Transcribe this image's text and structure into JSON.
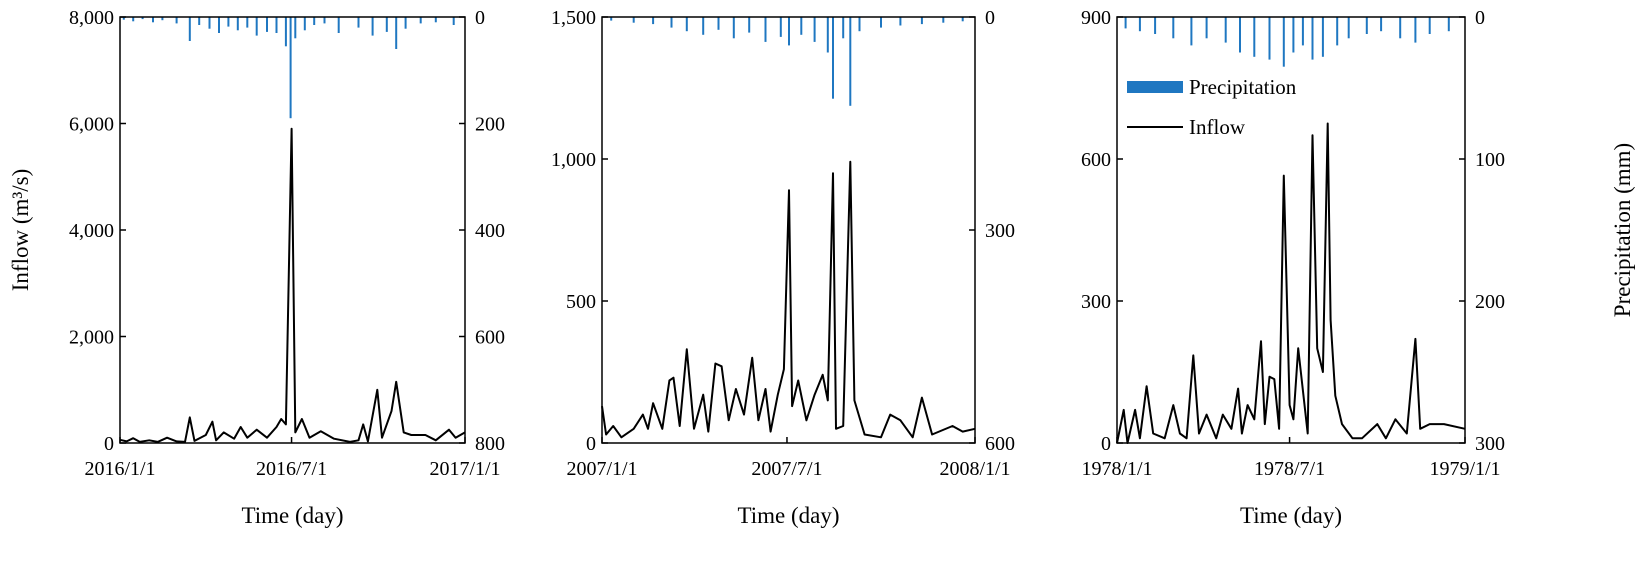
{
  "chart_data": [
    {
      "type": "line",
      "xlabel": "Time (day)",
      "ylabel": "Inflow (m³/s)",
      "y2label": "",
      "x_ticks": [
        "2016/1/1",
        "2016/7/1",
        "2017/1/1"
      ],
      "x_range": [
        "2016/1/1",
        "2017/1/1"
      ],
      "ylim": [
        0,
        8000
      ],
      "y_ticks": [
        "0",
        "2,000",
        "4,000",
        "6,000",
        "8,000"
      ],
      "y2lim": [
        0,
        800
      ],
      "y2_inverted": true,
      "y2_ticks": [
        "0",
        "200",
        "400",
        "600",
        "800"
      ],
      "legend": null,
      "series": [
        {
          "name": "Inflow",
          "chart": "line",
          "color": "#000000",
          "points": [
            [
              "2016/1/1",
              60
            ],
            [
              "2016/1/8",
              30
            ],
            [
              "2016/1/15",
              90
            ],
            [
              "2016/1/22",
              20
            ],
            [
              "2016/2/1",
              50
            ],
            [
              "2016/2/10",
              20
            ],
            [
              "2016/2/20",
              100
            ],
            [
              "2016/3/1",
              30
            ],
            [
              "2016/3/10",
              20
            ],
            [
              "2016/3/15",
              480
            ],
            [
              "2016/3/20",
              40
            ],
            [
              "2016/4/1",
              150
            ],
            [
              "2016/4/8",
              400
            ],
            [
              "2016/4/12",
              50
            ],
            [
              "2016/4/20",
              200
            ],
            [
              "2016/5/1",
              80
            ],
            [
              "2016/5/8",
              300
            ],
            [
              "2016/5/15",
              100
            ],
            [
              "2016/5/25",
              250
            ],
            [
              "2016/6/5",
              100
            ],
            [
              "2016/6/15",
              300
            ],
            [
              "2016/6/20",
              450
            ],
            [
              "2016/6/25",
              350
            ],
            [
              "2016/7/1",
              5900
            ],
            [
              "2016/7/5",
              200
            ],
            [
              "2016/7/12",
              450
            ],
            [
              "2016/7/20",
              100
            ],
            [
              "2016/8/1",
              220
            ],
            [
              "2016/8/15",
              80
            ],
            [
              "2016/9/1",
              20
            ],
            [
              "2016/9/10",
              50
            ],
            [
              "2016/9/15",
              350
            ],
            [
              "2016/9/20",
              30
            ],
            [
              "2016/9/30",
              1000
            ],
            [
              "2016/10/5",
              100
            ],
            [
              "2016/10/15",
              600
            ],
            [
              "2016/10/20",
              1150
            ],
            [
              "2016/10/28",
              200
            ],
            [
              "2016/11/5",
              150
            ],
            [
              "2016/11/20",
              150
            ],
            [
              "2016/12/1",
              50
            ],
            [
              "2016/12/15",
              250
            ],
            [
              "2016/12/22",
              100
            ],
            [
              "2017/1/1",
              200
            ]
          ]
        },
        {
          "name": "Precipitation",
          "chart": "bar",
          "axis": "right",
          "color": "#1f77c1",
          "points": [
            [
              "2016/1/5",
              5
            ],
            [
              "2016/1/15",
              8
            ],
            [
              "2016/1/25",
              4
            ],
            [
              "2016/2/5",
              10
            ],
            [
              "2016/2/15",
              6
            ],
            [
              "2016/3/1",
              12
            ],
            [
              "2016/3/15",
              45
            ],
            [
              "2016/3/25",
              15
            ],
            [
              "2016/4/5",
              22
            ],
            [
              "2016/4/15",
              30
            ],
            [
              "2016/4/25",
              18
            ],
            [
              "2016/5/5",
              25
            ],
            [
              "2016/5/15",
              20
            ],
            [
              "2016/5/25",
              35
            ],
            [
              "2016/6/5",
              28
            ],
            [
              "2016/6/15",
              30
            ],
            [
              "2016/6/25",
              55
            ],
            [
              "2016/6/30",
              190
            ],
            [
              "2016/7/5",
              40
            ],
            [
              "2016/7/15",
              25
            ],
            [
              "2016/7/25",
              15
            ],
            [
              "2016/8/5",
              12
            ],
            [
              "2016/8/20",
              30
            ],
            [
              "2016/9/10",
              20
            ],
            [
              "2016/9/25",
              35
            ],
            [
              "2016/10/10",
              28
            ],
            [
              "2016/10/20",
              60
            ],
            [
              "2016/10/30",
              22
            ],
            [
              "2016/11/15",
              12
            ],
            [
              "2016/12/1",
              10
            ],
            [
              "2016/12/20",
              15
            ]
          ]
        }
      ]
    },
    {
      "type": "line",
      "xlabel": "Time (day)",
      "ylabel": "",
      "y2label": "",
      "x_ticks": [
        "2007/1/1",
        "2007/7/1",
        "2008/1/1"
      ],
      "x_range": [
        "2007/1/1",
        "2008/1/1"
      ],
      "ylim": [
        0,
        1500
      ],
      "y_ticks": [
        "0",
        "500",
        "1,000",
        "1,500"
      ],
      "y2lim": [
        0,
        600
      ],
      "y2_inverted": true,
      "y2_ticks": [
        "0",
        "300",
        "600"
      ],
      "legend": null,
      "series": [
        {
          "name": "Inflow",
          "chart": "line",
          "color": "#000000",
          "points": [
            [
              "2007/1/1",
              130
            ],
            [
              "2007/1/5",
              30
            ],
            [
              "2007/1/12",
              60
            ],
            [
              "2007/1/20",
              20
            ],
            [
              "2007/2/1",
              50
            ],
            [
              "2007/2/10",
              100
            ],
            [
              "2007/2/15",
              50
            ],
            [
              "2007/2/20",
              140
            ],
            [
              "2007/3/1",
              50
            ],
            [
              "2007/3/8",
              220
            ],
            [
              "2007/3/12",
              230
            ],
            [
              "2007/3/18",
              60
            ],
            [
              "2007/3/25",
              330
            ],
            [
              "2007/4/1",
              50
            ],
            [
              "2007/4/10",
              170
            ],
            [
              "2007/4/15",
              40
            ],
            [
              "2007/4/22",
              280
            ],
            [
              "2007/4/28",
              270
            ],
            [
              "2007/5/5",
              80
            ],
            [
              "2007/5/12",
              190
            ],
            [
              "2007/5/20",
              100
            ],
            [
              "2007/5/28",
              300
            ],
            [
              "2007/6/3",
              80
            ],
            [
              "2007/6/10",
              190
            ],
            [
              "2007/6/15",
              40
            ],
            [
              "2007/6/22",
              170
            ],
            [
              "2007/6/28",
              260
            ],
            [
              "2007/7/3",
              890
            ],
            [
              "2007/7/6",
              130
            ],
            [
              "2007/7/12",
              220
            ],
            [
              "2007/7/20",
              80
            ],
            [
              "2007/7/28",
              170
            ],
            [
              "2007/8/5",
              240
            ],
            [
              "2007/8/10",
              150
            ],
            [
              "2007/8/15",
              950
            ],
            [
              "2007/8/18",
              50
            ],
            [
              "2007/8/25",
              60
            ],
            [
              "2007/9/1",
              990
            ],
            [
              "2007/9/5",
              150
            ],
            [
              "2007/9/15",
              30
            ],
            [
              "2007/10/1",
              20
            ],
            [
              "2007/10/10",
              100
            ],
            [
              "2007/10/20",
              80
            ],
            [
              "2007/11/1",
              20
            ],
            [
              "2007/11/10",
              160
            ],
            [
              "2007/11/20",
              30
            ],
            [
              "2007/12/10",
              60
            ],
            [
              "2007/12/20",
              40
            ],
            [
              "2008/1/1",
              50
            ]
          ]
        },
        {
          "name": "Precipitation",
          "chart": "bar",
          "axis": "right",
          "color": "#1f77c1",
          "points": [
            [
              "2007/1/10",
              5
            ],
            [
              "2007/2/1",
              8
            ],
            [
              "2007/2/20",
              10
            ],
            [
              "2007/3/10",
              15
            ],
            [
              "2007/3/25",
              20
            ],
            [
              "2007/4/10",
              25
            ],
            [
              "2007/4/25",
              18
            ],
            [
              "2007/5/10",
              30
            ],
            [
              "2007/5/25",
              22
            ],
            [
              "2007/6/10",
              35
            ],
            [
              "2007/6/25",
              28
            ],
            [
              "2007/7/3",
              40
            ],
            [
              "2007/7/15",
              25
            ],
            [
              "2007/7/28",
              35
            ],
            [
              "2007/8/10",
              50
            ],
            [
              "2007/8/15",
              115
            ],
            [
              "2007/8/25",
              30
            ],
            [
              "2007/9/1",
              125
            ],
            [
              "2007/9/10",
              20
            ],
            [
              "2007/10/1",
              15
            ],
            [
              "2007/10/20",
              12
            ],
            [
              "2007/11/10",
              10
            ],
            [
              "2007/12/1",
              8
            ],
            [
              "2007/12/20",
              6
            ]
          ]
        }
      ]
    },
    {
      "type": "line",
      "xlabel": "Time (day)",
      "ylabel": "",
      "y2label": "Precipitation (mm)",
      "x_ticks": [
        "1978/1/1",
        "1978/7/1",
        "1979/1/1"
      ],
      "x_range": [
        "1978/1/1",
        "1979/1/1"
      ],
      "ylim": [
        0,
        900
      ],
      "y_ticks": [
        "0",
        "300",
        "600",
        "900"
      ],
      "y2lim": [
        0,
        300
      ],
      "y2_inverted": true,
      "y2_ticks": [
        "0",
        "100",
        "200",
        "300"
      ],
      "legend": {
        "position": "top-left",
        "entries": [
          {
            "label": "Precipitation",
            "symbol": "bar",
            "color": "#1f77c1"
          },
          {
            "label": "Inflow",
            "symbol": "line",
            "color": "#000000"
          }
        ]
      },
      "series": [
        {
          "name": "Inflow",
          "chart": "line",
          "color": "#000000",
          "points": [
            [
              "1978/1/1",
              0
            ],
            [
              "1978/1/8",
              70
            ],
            [
              "1978/1/12",
              0
            ],
            [
              "1978/1/20",
              70
            ],
            [
              "1978/1/25",
              10
            ],
            [
              "1978/2/1",
              120
            ],
            [
              "1978/2/8",
              20
            ],
            [
              "1978/2/20",
              10
            ],
            [
              "1978/3/1",
              80
            ],
            [
              "1978/3/8",
              20
            ],
            [
              "1978/3/15",
              10
            ],
            [
              "1978/3/22",
              185
            ],
            [
              "1978/3/28",
              20
            ],
            [
              "1978/4/5",
              60
            ],
            [
              "1978/4/15",
              10
            ],
            [
              "1978/4/22",
              60
            ],
            [
              "1978/5/1",
              30
            ],
            [
              "1978/5/8",
              115
            ],
            [
              "1978/5/12",
              20
            ],
            [
              "1978/5/18",
              80
            ],
            [
              "1978/5/25",
              50
            ],
            [
              "1978/6/1",
              215
            ],
            [
              "1978/6/5",
              40
            ],
            [
              "1978/6/10",
              140
            ],
            [
              "1978/6/15",
              135
            ],
            [
              "1978/6/20",
              30
            ],
            [
              "1978/6/25",
              565
            ],
            [
              "1978/7/1",
              80
            ],
            [
              "1978/7/5",
              50
            ],
            [
              "1978/7/10",
              200
            ],
            [
              "1978/7/20",
              20
            ],
            [
              "1978/7/25",
              650
            ],
            [
              "1978/7/30",
              200
            ],
            [
              "1978/8/5",
              150
            ],
            [
              "1978/8/10",
              675
            ],
            [
              "1978/8/13",
              260
            ],
            [
              "1978/8/18",
              100
            ],
            [
              "1978/8/25",
              40
            ],
            [
              "1978/9/5",
              10
            ],
            [
              "1978/9/15",
              10
            ],
            [
              "1978/10/1",
              40
            ],
            [
              "1978/10/10",
              10
            ],
            [
              "1978/10/20",
              50
            ],
            [
              "1978/11/1",
              20
            ],
            [
              "1978/11/10",
              220
            ],
            [
              "1978/11/15",
              30
            ],
            [
              "1978/11/25",
              40
            ],
            [
              "1978/12/10",
              40
            ],
            [
              "1979/1/1",
              30
            ]
          ]
        },
        {
          "name": "Precipitation",
          "chart": "bar",
          "axis": "right",
          "color": "#1f77c1",
          "points": [
            [
              "1978/1/10",
              8
            ],
            [
              "1978/1/25",
              10
            ],
            [
              "1978/2/10",
              12
            ],
            [
              "1978/3/1",
              15
            ],
            [
              "1978/3/20",
              20
            ],
            [
              "1978/4/5",
              15
            ],
            [
              "1978/4/25",
              18
            ],
            [
              "1978/5/10",
              25
            ],
            [
              "1978/5/25",
              28
            ],
            [
              "1978/6/10",
              30
            ],
            [
              "1978/6/25",
              35
            ],
            [
              "1978/7/5",
              25
            ],
            [
              "1978/7/15",
              20
            ],
            [
              "1978/7/25",
              30
            ],
            [
              "1978/8/5",
              28
            ],
            [
              "1978/8/20",
              20
            ],
            [
              "1978/9/1",
              15
            ],
            [
              "1978/9/20",
              12
            ],
            [
              "1978/10/5",
              10
            ],
            [
              "1978/10/25",
              15
            ],
            [
              "1978/11/10",
              18
            ],
            [
              "1978/11/25",
              12
            ],
            [
              "1978/12/15",
              10
            ]
          ]
        }
      ]
    }
  ]
}
